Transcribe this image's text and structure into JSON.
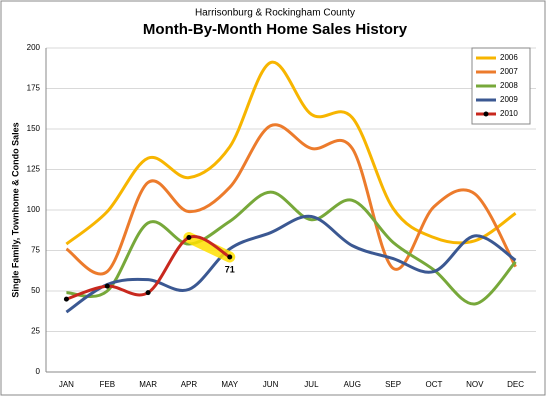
{
  "chart_data": {
    "type": "line",
    "subtitle": "Harrisonburg & Rockingham County",
    "title": "Month-By-Month Home Sales History",
    "y_label": "Single Family, Townhome & Condo Sales",
    "categories": [
      "JAN",
      "FEB",
      "MAR",
      "APR",
      "MAY",
      "JUN",
      "JUL",
      "AUG",
      "SEP",
      "OCT",
      "NOV",
      "DEC"
    ],
    "series": [
      {
        "name": "2006",
        "color": "#f7b500",
        "values": [
          79,
          99,
          132,
          120,
          139,
          191,
          159,
          157,
          101,
          83,
          81,
          98
        ]
      },
      {
        "name": "2007",
        "color": "#ec7b2c",
        "values": [
          76,
          62,
          117,
          99,
          114,
          152,
          138,
          138,
          64,
          102,
          110,
          65
        ]
      },
      {
        "name": "2008",
        "color": "#77a83a",
        "values": [
          49,
          50,
          92,
          79,
          93,
          111,
          94,
          106,
          80,
          63,
          42,
          68
        ]
      },
      {
        "name": "2009",
        "color": "#3b5892",
        "values": [
          37,
          54,
          57,
          51,
          76,
          86,
          96,
          78,
          70,
          62,
          84,
          69
        ]
      },
      {
        "name": "2010",
        "color": "#c8281e",
        "marker": "circle",
        "highlight": "#ffe000",
        "show_last_label": true,
        "values": [
          45,
          53,
          49,
          83,
          71,
          null,
          null,
          null,
          null,
          null,
          null,
          null
        ]
      }
    ],
    "ylim": [
      0,
      200
    ],
    "yticks": [
      0,
      25,
      50,
      75,
      100,
      125,
      150,
      175,
      200
    ],
    "grid": true,
    "legend": "top-right"
  }
}
